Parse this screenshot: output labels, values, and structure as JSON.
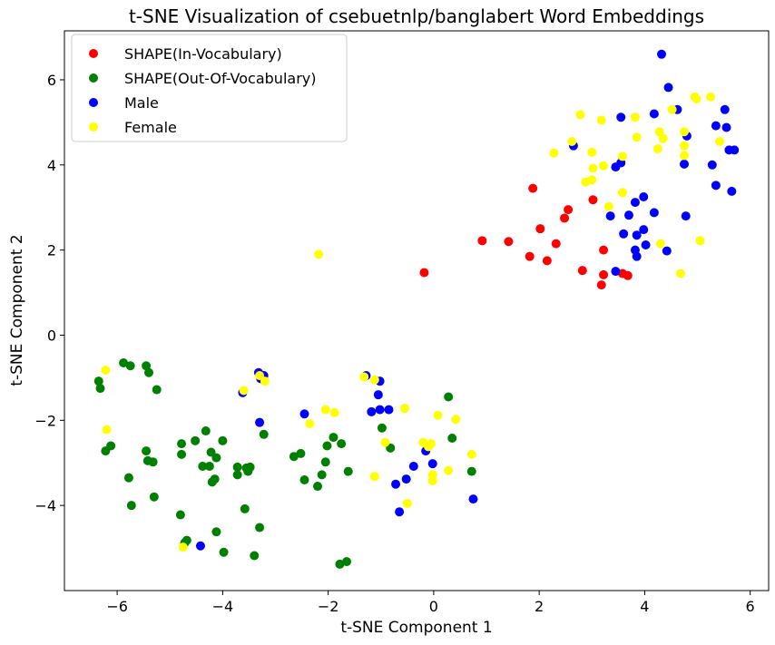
{
  "chart_data": {
    "type": "scatter",
    "title": "t-SNE Visualization of csebuetnlp/banglabert Word Embeddings",
    "xlabel": "t-SNE Component 1",
    "ylabel": "t-SNE Component 2",
    "xlim": [
      -7,
      6.35
    ],
    "ylim": [
      -6,
      7.15
    ],
    "xticks": [
      -6,
      -4,
      -2,
      0,
      2,
      4,
      6
    ],
    "yticks": [
      -4,
      -2,
      0,
      2,
      4,
      6
    ],
    "xtick_labels": [
      "−6",
      "−4",
      "−2",
      "0",
      "2",
      "4",
      "6"
    ],
    "ytick_labels": [
      "−4",
      "−2",
      "0",
      "2",
      "4",
      "6"
    ],
    "grid": false,
    "legend_position": "top-left",
    "series": [
      {
        "name": "SHAPE(In-Vocabulary)",
        "color": "#ff0000",
        "points": [
          [
            1.88,
            3.45
          ],
          [
            2.55,
            2.95
          ],
          [
            3.02,
            3.18
          ],
          [
            2.48,
            2.75
          ],
          [
            2.02,
            2.5
          ],
          [
            2.32,
            2.15
          ],
          [
            0.92,
            2.22
          ],
          [
            1.42,
            2.2
          ],
          [
            1.82,
            1.85
          ],
          [
            2.15,
            1.75
          ],
          [
            3.22,
            2.0
          ],
          [
            2.82,
            1.52
          ],
          [
            3.22,
            1.42
          ],
          [
            3.58,
            1.45
          ],
          [
            3.68,
            1.4
          ],
          [
            3.18,
            1.18
          ],
          [
            -0.18,
            1.47
          ]
        ]
      },
      {
        "name": "SHAPE(Out-Of-Vocabulary)",
        "color": "#008000",
        "points": [
          [
            -6.35,
            -1.08
          ],
          [
            -6.32,
            -1.25
          ],
          [
            -5.88,
            -0.65
          ],
          [
            -5.75,
            -0.72
          ],
          [
            -5.45,
            -0.72
          ],
          [
            -5.4,
            -0.88
          ],
          [
            -5.25,
            -1.28
          ],
          [
            -6.22,
            -2.72
          ],
          [
            -6.12,
            -2.6
          ],
          [
            -5.45,
            -2.72
          ],
          [
            -5.42,
            -2.95
          ],
          [
            -5.32,
            -2.98
          ],
          [
            -5.78,
            -3.35
          ],
          [
            -5.73,
            -4.0
          ],
          [
            -5.3,
            -3.8
          ],
          [
            -4.78,
            -2.55
          ],
          [
            -4.78,
            -2.8
          ],
          [
            -4.52,
            -2.48
          ],
          [
            -4.32,
            -2.25
          ],
          [
            -4.22,
            -2.75
          ],
          [
            -4.12,
            -2.88
          ],
          [
            -4.0,
            -2.48
          ],
          [
            -4.38,
            -3.08
          ],
          [
            -4.25,
            -3.08
          ],
          [
            -4.2,
            -3.45
          ],
          [
            -4.15,
            -3.38
          ],
          [
            -3.72,
            -3.1
          ],
          [
            -3.72,
            -3.28
          ],
          [
            -3.55,
            -3.12
          ],
          [
            -3.52,
            -3.2
          ],
          [
            -3.48,
            -3.1
          ],
          [
            -3.22,
            -2.33
          ],
          [
            -3.58,
            -4.08
          ],
          [
            -4.12,
            -4.62
          ],
          [
            -4.8,
            -4.22
          ],
          [
            -4.68,
            -4.82
          ],
          [
            -4.72,
            -4.88
          ],
          [
            -3.98,
            -5.1
          ],
          [
            -3.4,
            -5.18
          ],
          [
            -3.3,
            -4.52
          ],
          [
            -2.65,
            -2.85
          ],
          [
            -2.52,
            -2.78
          ],
          [
            -2.45,
            -3.4
          ],
          [
            -2.2,
            -3.55
          ],
          [
            -2.12,
            -3.28
          ],
          [
            -2.05,
            -2.98
          ],
          [
            -2.02,
            -2.6
          ],
          [
            -1.9,
            -2.4
          ],
          [
            -1.75,
            -2.55
          ],
          [
            -1.62,
            -3.2
          ],
          [
            -1.78,
            -5.38
          ],
          [
            -1.65,
            -5.32
          ],
          [
            -0.98,
            -2.18
          ],
          [
            -0.82,
            -2.65
          ],
          [
            0.28,
            -1.45
          ],
          [
            0.35,
            -2.42
          ],
          [
            0.72,
            -3.2
          ]
        ]
      },
      {
        "name": "Male",
        "color": "#0000ff",
        "points": [
          [
            4.32,
            6.6
          ],
          [
            4.45,
            5.82
          ],
          [
            4.62,
            5.3
          ],
          [
            4.18,
            5.2
          ],
          [
            3.55,
            5.12
          ],
          [
            2.65,
            4.45
          ],
          [
            3.55,
            4.05
          ],
          [
            3.45,
            3.95
          ],
          [
            4.8,
            4.68
          ],
          [
            4.75,
            4.02
          ],
          [
            5.52,
            5.3
          ],
          [
            5.35,
            4.92
          ],
          [
            5.55,
            4.88
          ],
          [
            5.6,
            4.35
          ],
          [
            5.7,
            4.35
          ],
          [
            5.28,
            4.0
          ],
          [
            5.35,
            3.52
          ],
          [
            5.65,
            3.38
          ],
          [
            3.82,
            3.12
          ],
          [
            3.98,
            3.25
          ],
          [
            3.35,
            2.8
          ],
          [
            3.7,
            2.82
          ],
          [
            4.18,
            2.88
          ],
          [
            3.85,
            2.35
          ],
          [
            3.6,
            2.38
          ],
          [
            3.98,
            2.48
          ],
          [
            4.02,
            2.12
          ],
          [
            3.82,
            2.0
          ],
          [
            3.85,
            1.85
          ],
          [
            4.42,
            1.98
          ],
          [
            4.78,
            2.8
          ],
          [
            3.45,
            1.5
          ],
          [
            -3.32,
            -0.88
          ],
          [
            -3.22,
            -0.95
          ],
          [
            -3.28,
            -1.02
          ],
          [
            -3.62,
            -1.35
          ],
          [
            -1.28,
            -0.95
          ],
          [
            -1.02,
            -1.08
          ],
          [
            -1.05,
            -1.4
          ],
          [
            -1.02,
            -1.75
          ],
          [
            -0.85,
            -1.75
          ],
          [
            -1.18,
            -1.8
          ],
          [
            -3.3,
            -2.05
          ],
          [
            -2.45,
            -1.85
          ],
          [
            -0.15,
            -2.72
          ],
          [
            -0.38,
            -3.08
          ],
          [
            -0.02,
            -3.02
          ],
          [
            -0.52,
            -3.38
          ],
          [
            -0.72,
            -3.5
          ],
          [
            -0.65,
            -4.15
          ],
          [
            0.75,
            -3.85
          ],
          [
            -4.42,
            -4.95
          ]
        ]
      },
      {
        "name": "Female",
        "color": "#ffff00",
        "points": [
          [
            2.78,
            5.18
          ],
          [
            3.18,
            5.05
          ],
          [
            3.82,
            5.12
          ],
          [
            4.52,
            5.3
          ],
          [
            4.95,
            5.6
          ],
          [
            4.98,
            5.55
          ],
          [
            5.25,
            5.6
          ],
          [
            2.28,
            4.28
          ],
          [
            2.62,
            4.55
          ],
          [
            3.0,
            4.3
          ],
          [
            3.22,
            3.98
          ],
          [
            3.02,
            3.92
          ],
          [
            3.58,
            4.2
          ],
          [
            3.85,
            4.65
          ],
          [
            4.28,
            4.78
          ],
          [
            4.35,
            4.62
          ],
          [
            4.25,
            4.38
          ],
          [
            4.75,
            4.78
          ],
          [
            4.75,
            4.45
          ],
          [
            4.75,
            4.22
          ],
          [
            5.42,
            4.55
          ],
          [
            2.88,
            3.6
          ],
          [
            3.0,
            3.65
          ],
          [
            3.58,
            3.35
          ],
          [
            3.32,
            3.02
          ],
          [
            4.3,
            2.15
          ],
          [
            5.05,
            2.22
          ],
          [
            4.68,
            1.45
          ],
          [
            -2.18,
            1.9
          ],
          [
            -6.22,
            -0.82
          ],
          [
            -6.2,
            -2.22
          ],
          [
            -4.75,
            -4.98
          ],
          [
            -3.6,
            -1.3
          ],
          [
            -3.3,
            -0.95
          ],
          [
            -3.2,
            -1.08
          ],
          [
            -2.35,
            -2.08
          ],
          [
            -2.05,
            -1.75
          ],
          [
            -1.88,
            -1.82
          ],
          [
            -1.32,
            -0.98
          ],
          [
            -1.12,
            -1.05
          ],
          [
            -0.55,
            -1.72
          ],
          [
            -0.92,
            -2.52
          ],
          [
            -1.12,
            -3.32
          ],
          [
            -0.2,
            -2.52
          ],
          [
            -0.1,
            -2.62
          ],
          [
            -0.05,
            -2.55
          ],
          [
            0.08,
            -1.88
          ],
          [
            0.42,
            -1.98
          ],
          [
            -0.02,
            -3.28
          ],
          [
            -0.02,
            -3.42
          ],
          [
            0.28,
            -3.18
          ],
          [
            0.72,
            -2.8
          ],
          [
            -0.5,
            -3.95
          ]
        ]
      }
    ]
  }
}
